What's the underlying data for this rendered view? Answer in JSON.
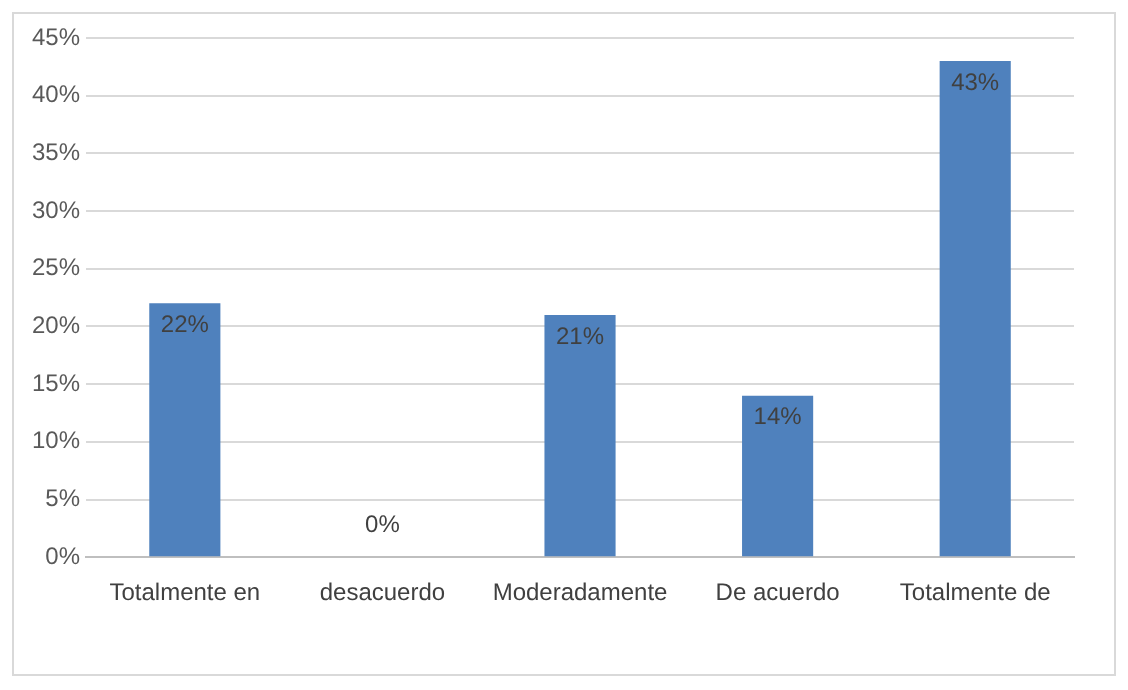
{
  "chart_data": {
    "type": "bar",
    "categories": [
      "Totalmente en",
      "desacuerdo",
      "Moderadamente",
      "De acuerdo",
      "Totalmente de"
    ],
    "values": [
      22,
      0,
      21,
      14,
      43
    ],
    "value_labels": [
      "22%",
      "0%",
      "21%",
      "14%",
      "43%"
    ],
    "color": "#4f81bd",
    "ylim": [
      0,
      45
    ],
    "yticks": [
      {
        "value": 0,
        "label": "0%"
      },
      {
        "value": 5,
        "label": "5%"
      },
      {
        "value": 10,
        "label": "10%"
      },
      {
        "value": 15,
        "label": "15%"
      },
      {
        "value": 20,
        "label": "20%"
      },
      {
        "value": 25,
        "label": "25%"
      },
      {
        "value": 30,
        "label": "30%"
      },
      {
        "value": 35,
        "label": "35%"
      },
      {
        "value": 40,
        "label": "40%"
      },
      {
        "value": 45,
        "label": "45%"
      }
    ],
    "grid": true
  }
}
